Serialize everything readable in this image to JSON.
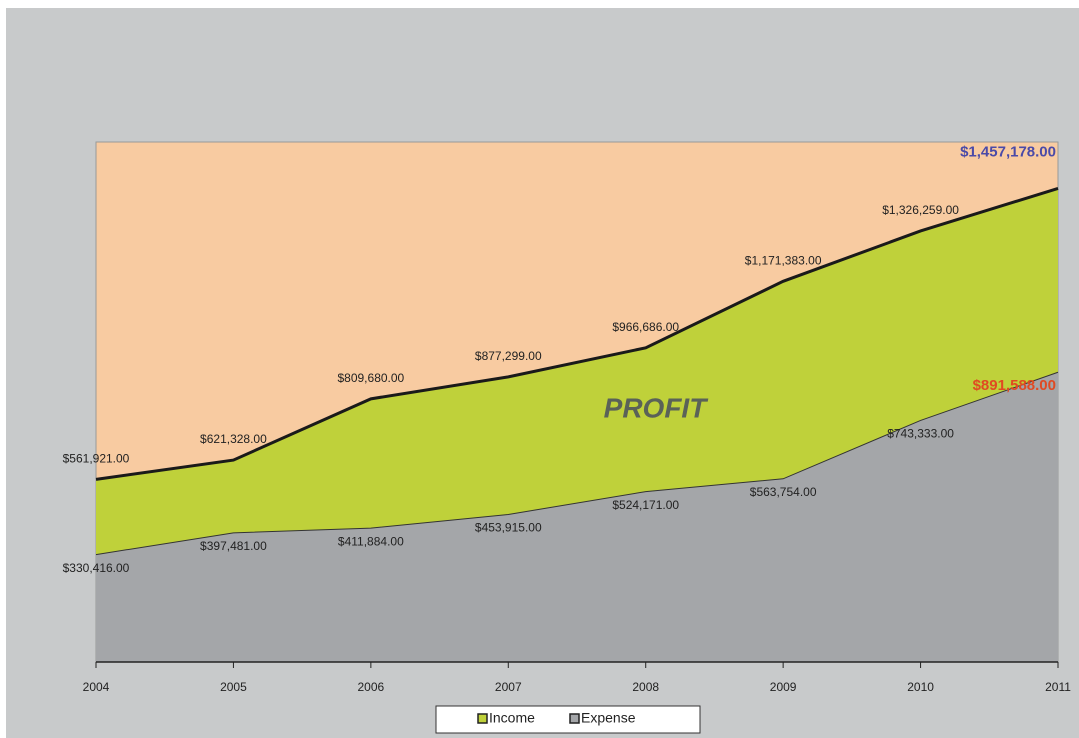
{
  "chart_data": {
    "type": "area",
    "categories": [
      "2004",
      "2005",
      "2006",
      "2007",
      "2008",
      "2009",
      "2010",
      "2011"
    ],
    "series": [
      {
        "name": "Income",
        "color": "#bfd13a",
        "values": [
          561921,
          621328,
          809680,
          877299,
          966686,
          1171383,
          1326259,
          1457178
        ],
        "value_labels": [
          "$561,921.00",
          "$621,328.00",
          "$809,680.00",
          "$877,299.00",
          "$966,686.00",
          "$1,171,383.00",
          "$1,326,259.00",
          "$1,457,178.00"
        ]
      },
      {
        "name": "Expense",
        "color": "#a4a6a9",
        "values": [
          330416,
          397481,
          411884,
          453915,
          524171,
          563754,
          743333,
          891588
        ],
        "value_labels": [
          "$330,416.00",
          "$397,481.00",
          "$411,884.00",
          "$453,915.00",
          "$524,171.00",
          "$563,754.00",
          "$743,333.00",
          "$891,588.00"
        ]
      }
    ],
    "annotations": [
      "PROFIT"
    ],
    "ylim": [
      0,
      1600000
    ],
    "plot_background": "#f8cba1",
    "legend": "bottom"
  }
}
